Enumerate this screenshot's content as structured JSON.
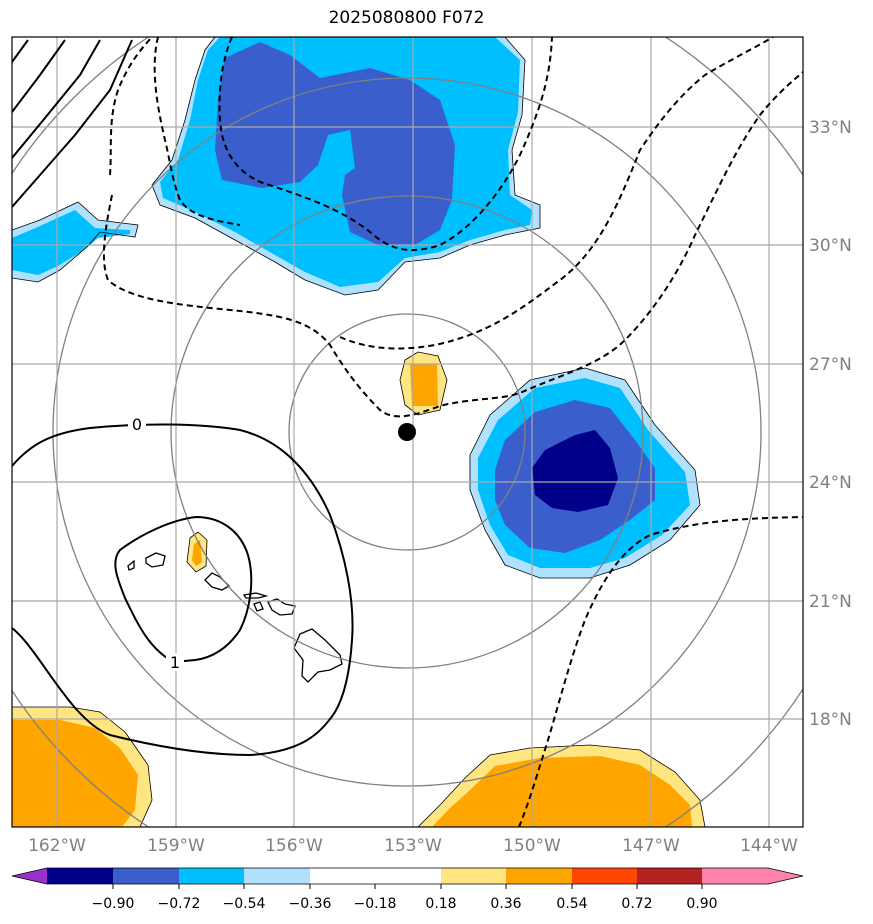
{
  "title": "2025080800 F072",
  "lon_ticks": [
    "162°W",
    "159°W",
    "156°W",
    "153°W",
    "150°W",
    "147°W",
    "144°W"
  ],
  "lat_ticks": [
    "33°N",
    "30°N",
    "27°N",
    "24°N",
    "21°N",
    "18°N"
  ],
  "contour_labels": [
    "0",
    "1"
  ],
  "colorbar": {
    "ticks": [
      "−0.90",
      "−0.72",
      "−0.54",
      "−0.36",
      "−0.18",
      "0.18",
      "0.36",
      "0.54",
      "0.72",
      "0.90"
    ],
    "colors": [
      "#9932cc",
      "#00008b",
      "#3a5fcd",
      "#00bfff",
      "#b0e2ff",
      "#ffffff",
      "#ffe680",
      "#ffa500",
      "#ff4500",
      "#b22222",
      "#ff82ab"
    ]
  },
  "palette": {
    "dark_blue": "#00008b",
    "royal_blue": "#3a5fcd",
    "deep_sky_blue": "#00bfff",
    "light_sky_blue": "#b0e2ff",
    "light_yellow": "#ffe680",
    "orange": "#ffa500",
    "grid": "#a9a9a9",
    "range_ring": "#808080"
  },
  "center_marker": "black-dot"
}
